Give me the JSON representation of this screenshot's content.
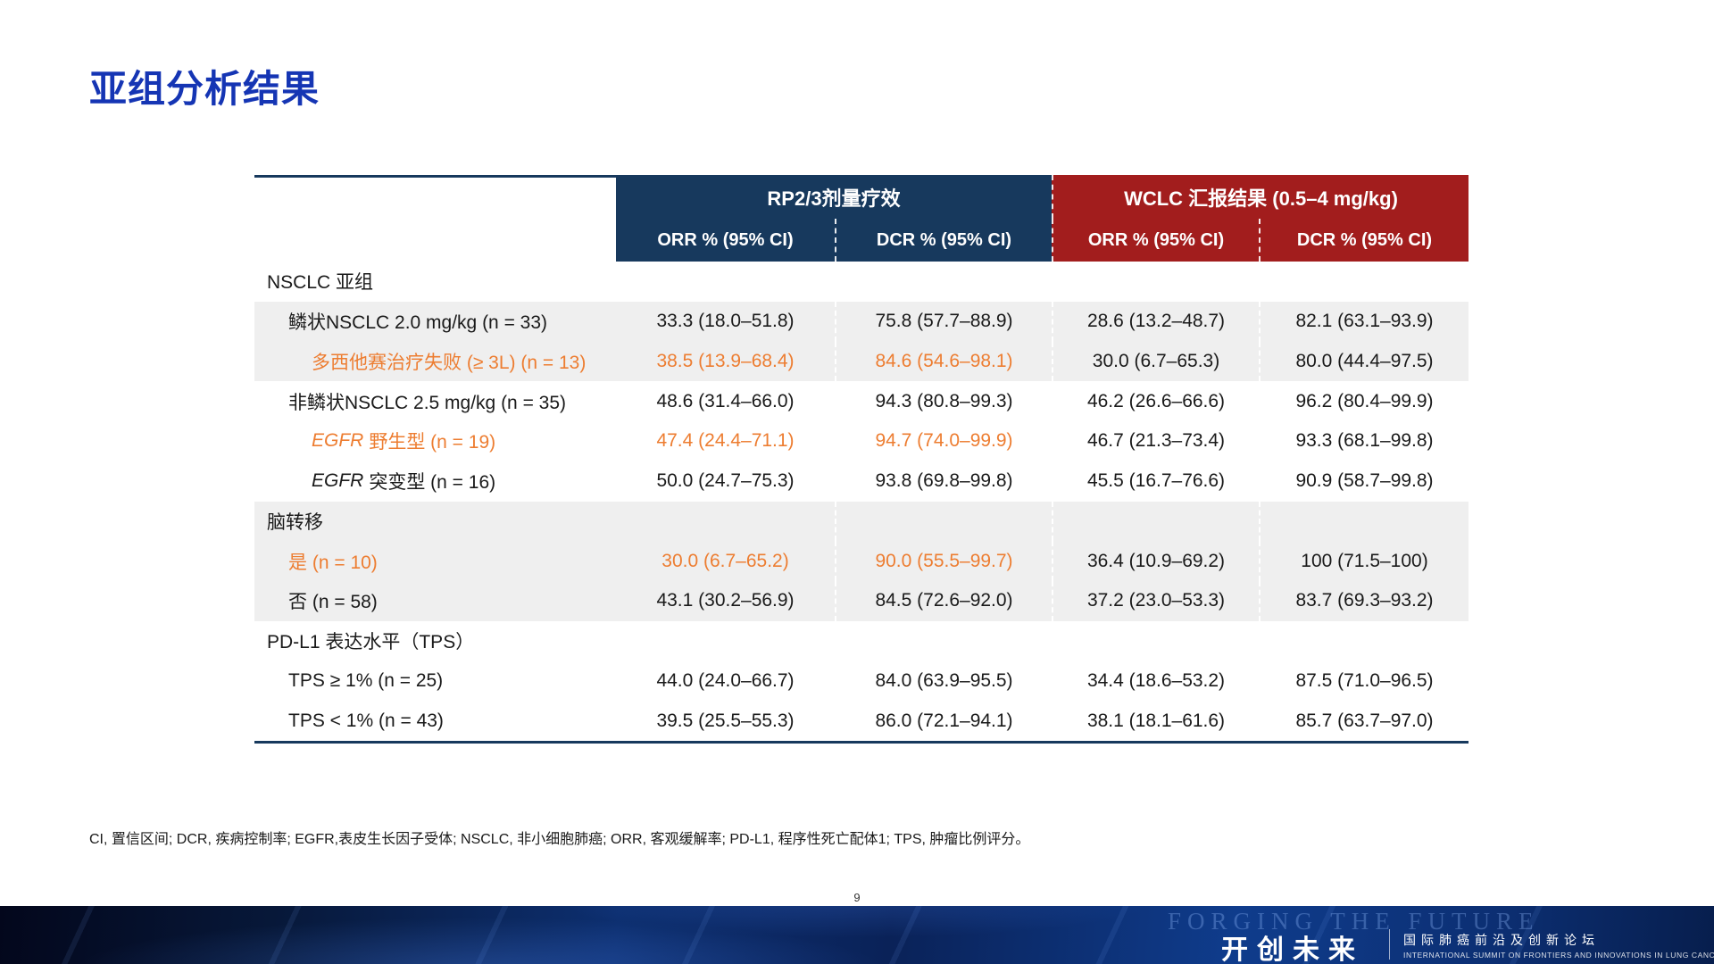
{
  "page": {
    "title": "亚组分析结果",
    "page_number": "9",
    "footnote": "CI, 置信区间; DCR, 疾病控制率; EGFR,表皮生长因子受体; NSCLC, 非小细胞肺癌; ORR, 客观缓解率; PD-L1, 程序性死亡配体1; TPS, 肿瘤比例评分。"
  },
  "colors": {
    "title_blue": "#1535b4",
    "header_navy": "#17395d",
    "header_red": "#a21d1d",
    "accent_orange": "#ED7D31",
    "row_gray": "#efefef"
  },
  "table": {
    "group_headers": [
      {
        "label": "RP2/3剂量疗效"
      },
      {
        "label": "WCLC 汇报结果 (0.5–4 mg/kg)"
      }
    ],
    "col_headers": [
      "ORR % (95% CI)",
      "DCR % (95% CI)",
      "ORR % (95% CI)",
      "DCR % (95% CI)"
    ],
    "rows": [
      {
        "type": "section",
        "shade": "white",
        "indent": 0,
        "label_parts": [
          {
            "text": "NSCLC 亚组"
          }
        ]
      },
      {
        "type": "data",
        "shade": "gray",
        "indent": 1,
        "label_parts": [
          {
            "text": "鳞状NSCLC 2.0 mg/kg (n = 33)"
          }
        ],
        "values": [
          "33.3 (18.0–51.8)",
          "75.8 (57.7–88.9)",
          "28.6 (13.2–48.7)",
          "82.1 (63.1–93.9)"
        ]
      },
      {
        "type": "data",
        "shade": "gray",
        "indent": 2,
        "highlight": true,
        "orange_values": [
          0,
          1
        ],
        "label_parts": [
          {
            "text": "多西他赛治疗失败 (≥ 3L) (n = 13)"
          }
        ],
        "values": [
          "38.5 (13.9–68.4)",
          "84.6 (54.6–98.1)",
          "30.0 (6.7–65.3)",
          "80.0 (44.4–97.5)"
        ]
      },
      {
        "type": "data",
        "shade": "white",
        "indent": 1,
        "label_parts": [
          {
            "text": "非鳞状NSCLC 2.5 mg/kg (n = 35)"
          }
        ],
        "values": [
          "48.6 (31.4–66.0)",
          "94.3 (80.8–99.3)",
          "46.2 (26.6–66.6)",
          "96.2 (80.4–99.9)"
        ]
      },
      {
        "type": "data",
        "shade": "white",
        "indent": 2,
        "highlight": true,
        "orange_values": [
          0,
          1
        ],
        "label_parts": [
          {
            "text": "EGFR",
            "italic": true
          },
          {
            "text": "野生型 (n = 19)"
          }
        ],
        "values": [
          "47.4 (24.4–71.1)",
          "94.7 (74.0–99.9)",
          "46.7 (21.3–73.4)",
          "93.3 (68.1–99.8)"
        ]
      },
      {
        "type": "data",
        "shade": "white",
        "indent": 2,
        "label_parts": [
          {
            "text": "EGFR",
            "italic": true
          },
          {
            "text": "突变型 (n = 16)"
          }
        ],
        "values": [
          "50.0 (24.7–75.3)",
          "93.8 (69.8–99.8)",
          "45.5 (16.7–76.6)",
          "90.9 (58.7–99.8)"
        ]
      },
      {
        "type": "section",
        "shade": "gray",
        "indent": 0,
        "label_parts": [
          {
            "text": "脑转移"
          }
        ]
      },
      {
        "type": "data",
        "shade": "gray",
        "indent": 1,
        "highlight": true,
        "orange_values": [
          0,
          1
        ],
        "label_parts": [
          {
            "text": "是 (n = 10)"
          }
        ],
        "values": [
          "30.0 (6.7–65.2)",
          "90.0 (55.5–99.7)",
          "36.4 (10.9–69.2)",
          "100 (71.5–100)"
        ]
      },
      {
        "type": "data",
        "shade": "gray",
        "indent": 1,
        "label_parts": [
          {
            "text": "否 (n = 58)"
          }
        ],
        "values": [
          "43.1 (30.2–56.9)",
          "84.5 (72.6–92.0)",
          "37.2 (23.0–53.3)",
          "83.7 (69.3–93.2)"
        ]
      },
      {
        "type": "section",
        "shade": "white",
        "indent": 0,
        "label_parts": [
          {
            "text": "PD-L1 表达水平（TPS）"
          }
        ]
      },
      {
        "type": "data",
        "shade": "white",
        "indent": 1,
        "label_parts": [
          {
            "text": "TPS ≥ 1% (n = 25)"
          }
        ],
        "values": [
          "44.0 (24.0–66.7)",
          "84.0 (63.9–95.5)",
          "34.4 (18.6–53.2)",
          "87.5 (71.0–96.5)"
        ]
      },
      {
        "type": "data",
        "shade": "white",
        "indent": 1,
        "label_parts": [
          {
            "text": "TPS < 1% (n = 43)"
          }
        ],
        "values": [
          "39.5 (25.5–55.3)",
          "86.0 (72.1–94.1)",
          "38.1 (18.1–61.6)",
          "85.7 (63.7–97.0)"
        ]
      }
    ]
  },
  "footer": {
    "watermark": "FORGING THE FUTURE",
    "logo_cn": "开创未来",
    "tagline_cn": "国际肺癌前沿及创新论坛",
    "tagline_en": "INTERNATIONAL SUMMIT ON FRONTIERS AND INNOVATIONS IN LUNG CANCER"
  }
}
